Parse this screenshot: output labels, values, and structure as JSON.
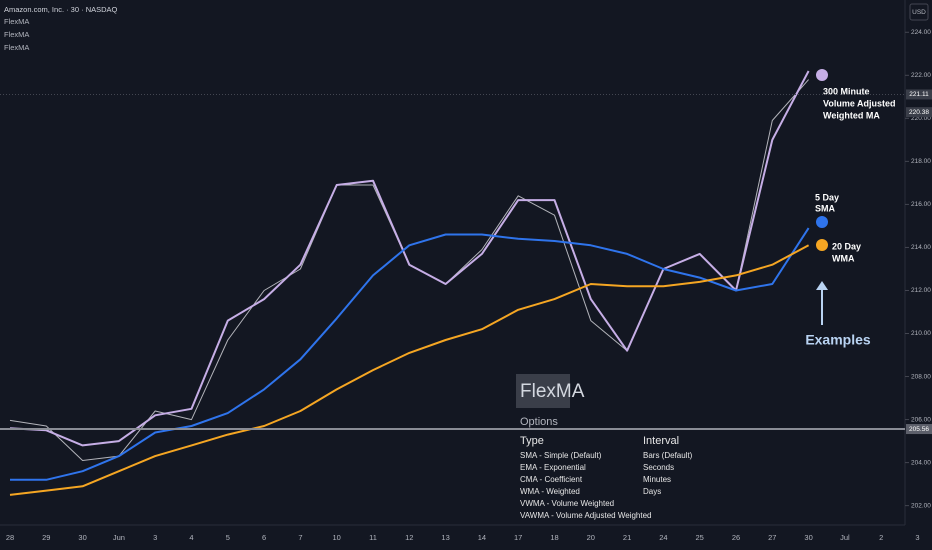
{
  "chart_data": {
    "type": "line",
    "title": "Amazon.com, Inc. · 30 · NASDAQ",
    "currency": "USD",
    "categories": [
      "28",
      "29",
      "30",
      "Jun",
      "3",
      "4",
      "5",
      "6",
      "7",
      "10",
      "11",
      "12",
      "13",
      "14",
      "17",
      "18",
      "20",
      "21",
      "24",
      "25",
      "26",
      "27",
      "30",
      "Jul",
      "2",
      "3"
    ],
    "series": [
      {
        "color": "#e8e8ee",
        "values": [
          205.96,
          205.7,
          204.1,
          204.3,
          206.4,
          206,
          209.7,
          212,
          213,
          216.9,
          216.9,
          213.2,
          212.3,
          213.9,
          216.4,
          215.5,
          210.6,
          209.2,
          213,
          213.7,
          212,
          219.9,
          221.8,
          null,
          null,
          null
        ]
      },
      {
        "name": "FlexMA",
        "color": "#c6aee6",
        "values": [
          205.6,
          205.5,
          204.8,
          205,
          206.2,
          206.5,
          210.6,
          211.6,
          213.2,
          216.9,
          217.1,
          213.2,
          212.3,
          213.7,
          216.2,
          216.2,
          211.6,
          209.2,
          213,
          213.7,
          212,
          219,
          222.2,
          null,
          null,
          null
        ]
      },
      {
        "name": "FlexMA",
        "color": "#2f74ec",
        "values": [
          203.2,
          203.2,
          203.6,
          204.3,
          205.4,
          205.7,
          206.3,
          207.4,
          208.8,
          210.7,
          212.7,
          214.1,
          214.6,
          214.6,
          214.4,
          214.3,
          214.1,
          213.7,
          213,
          212.6,
          212,
          212.3,
          214.9,
          null,
          null,
          null
        ]
      },
      {
        "name": "FlexMA",
        "color": "#f5a623",
        "values": [
          202.5,
          202.7,
          202.9,
          203.6,
          204.3,
          204.8,
          205.3,
          205.7,
          206.4,
          207.4,
          208.3,
          209.1,
          209.7,
          210.2,
          211.1,
          211.6,
          212.3,
          212.2,
          212.2,
          212.4,
          212.7,
          213.2,
          214.1,
          null,
          null,
          null
        ]
      }
    ],
    "ylim": [
      201.1,
      225.5
    ],
    "yticks": [
      {
        "value": 202,
        "label": "202.00"
      },
      {
        "value": 204,
        "label": "204.00"
      },
      {
        "value": 206,
        "label": "206.00"
      },
      {
        "value": 208,
        "label": "208.00"
      },
      {
        "value": 210,
        "label": "210.00"
      },
      {
        "value": 212,
        "label": "212.00"
      },
      {
        "value": 214,
        "label": "214.00"
      },
      {
        "value": 216,
        "label": "216.00"
      },
      {
        "value": 218,
        "label": "218.00"
      },
      {
        "value": 220,
        "label": "220.00"
      },
      {
        "value": 222,
        "label": "222.00"
      },
      {
        "value": 224,
        "label": "224.00"
      }
    ],
    "price_badges": [
      221.11,
      220.38,
      205.56
    ],
    "grid": false,
    "annotations": {
      "purple": [
        "300 Minute",
        "Volume Adjusted",
        "Weighted MA"
      ],
      "blue": [
        "5 Day",
        "SMA"
      ],
      "orange": [
        "20 Day",
        "WMA"
      ],
      "examples": "Examples"
    }
  },
  "panel": {
    "title": "FlexMA",
    "subtitle": "Options",
    "columns": [
      {
        "heading": "Type",
        "items": [
          "SMA - Simple (Default)",
          "EMA - Exponential",
          "CMA - Coefficient",
          "WMA - Weighted",
          "VWMA - Volume Weighted",
          "VAWMA - Volume Adjusted Weighted"
        ]
      },
      {
        "heading": "Interval",
        "items": [
          "Bars (Default)",
          "Seconds",
          "Minutes",
          "Days"
        ]
      }
    ]
  }
}
